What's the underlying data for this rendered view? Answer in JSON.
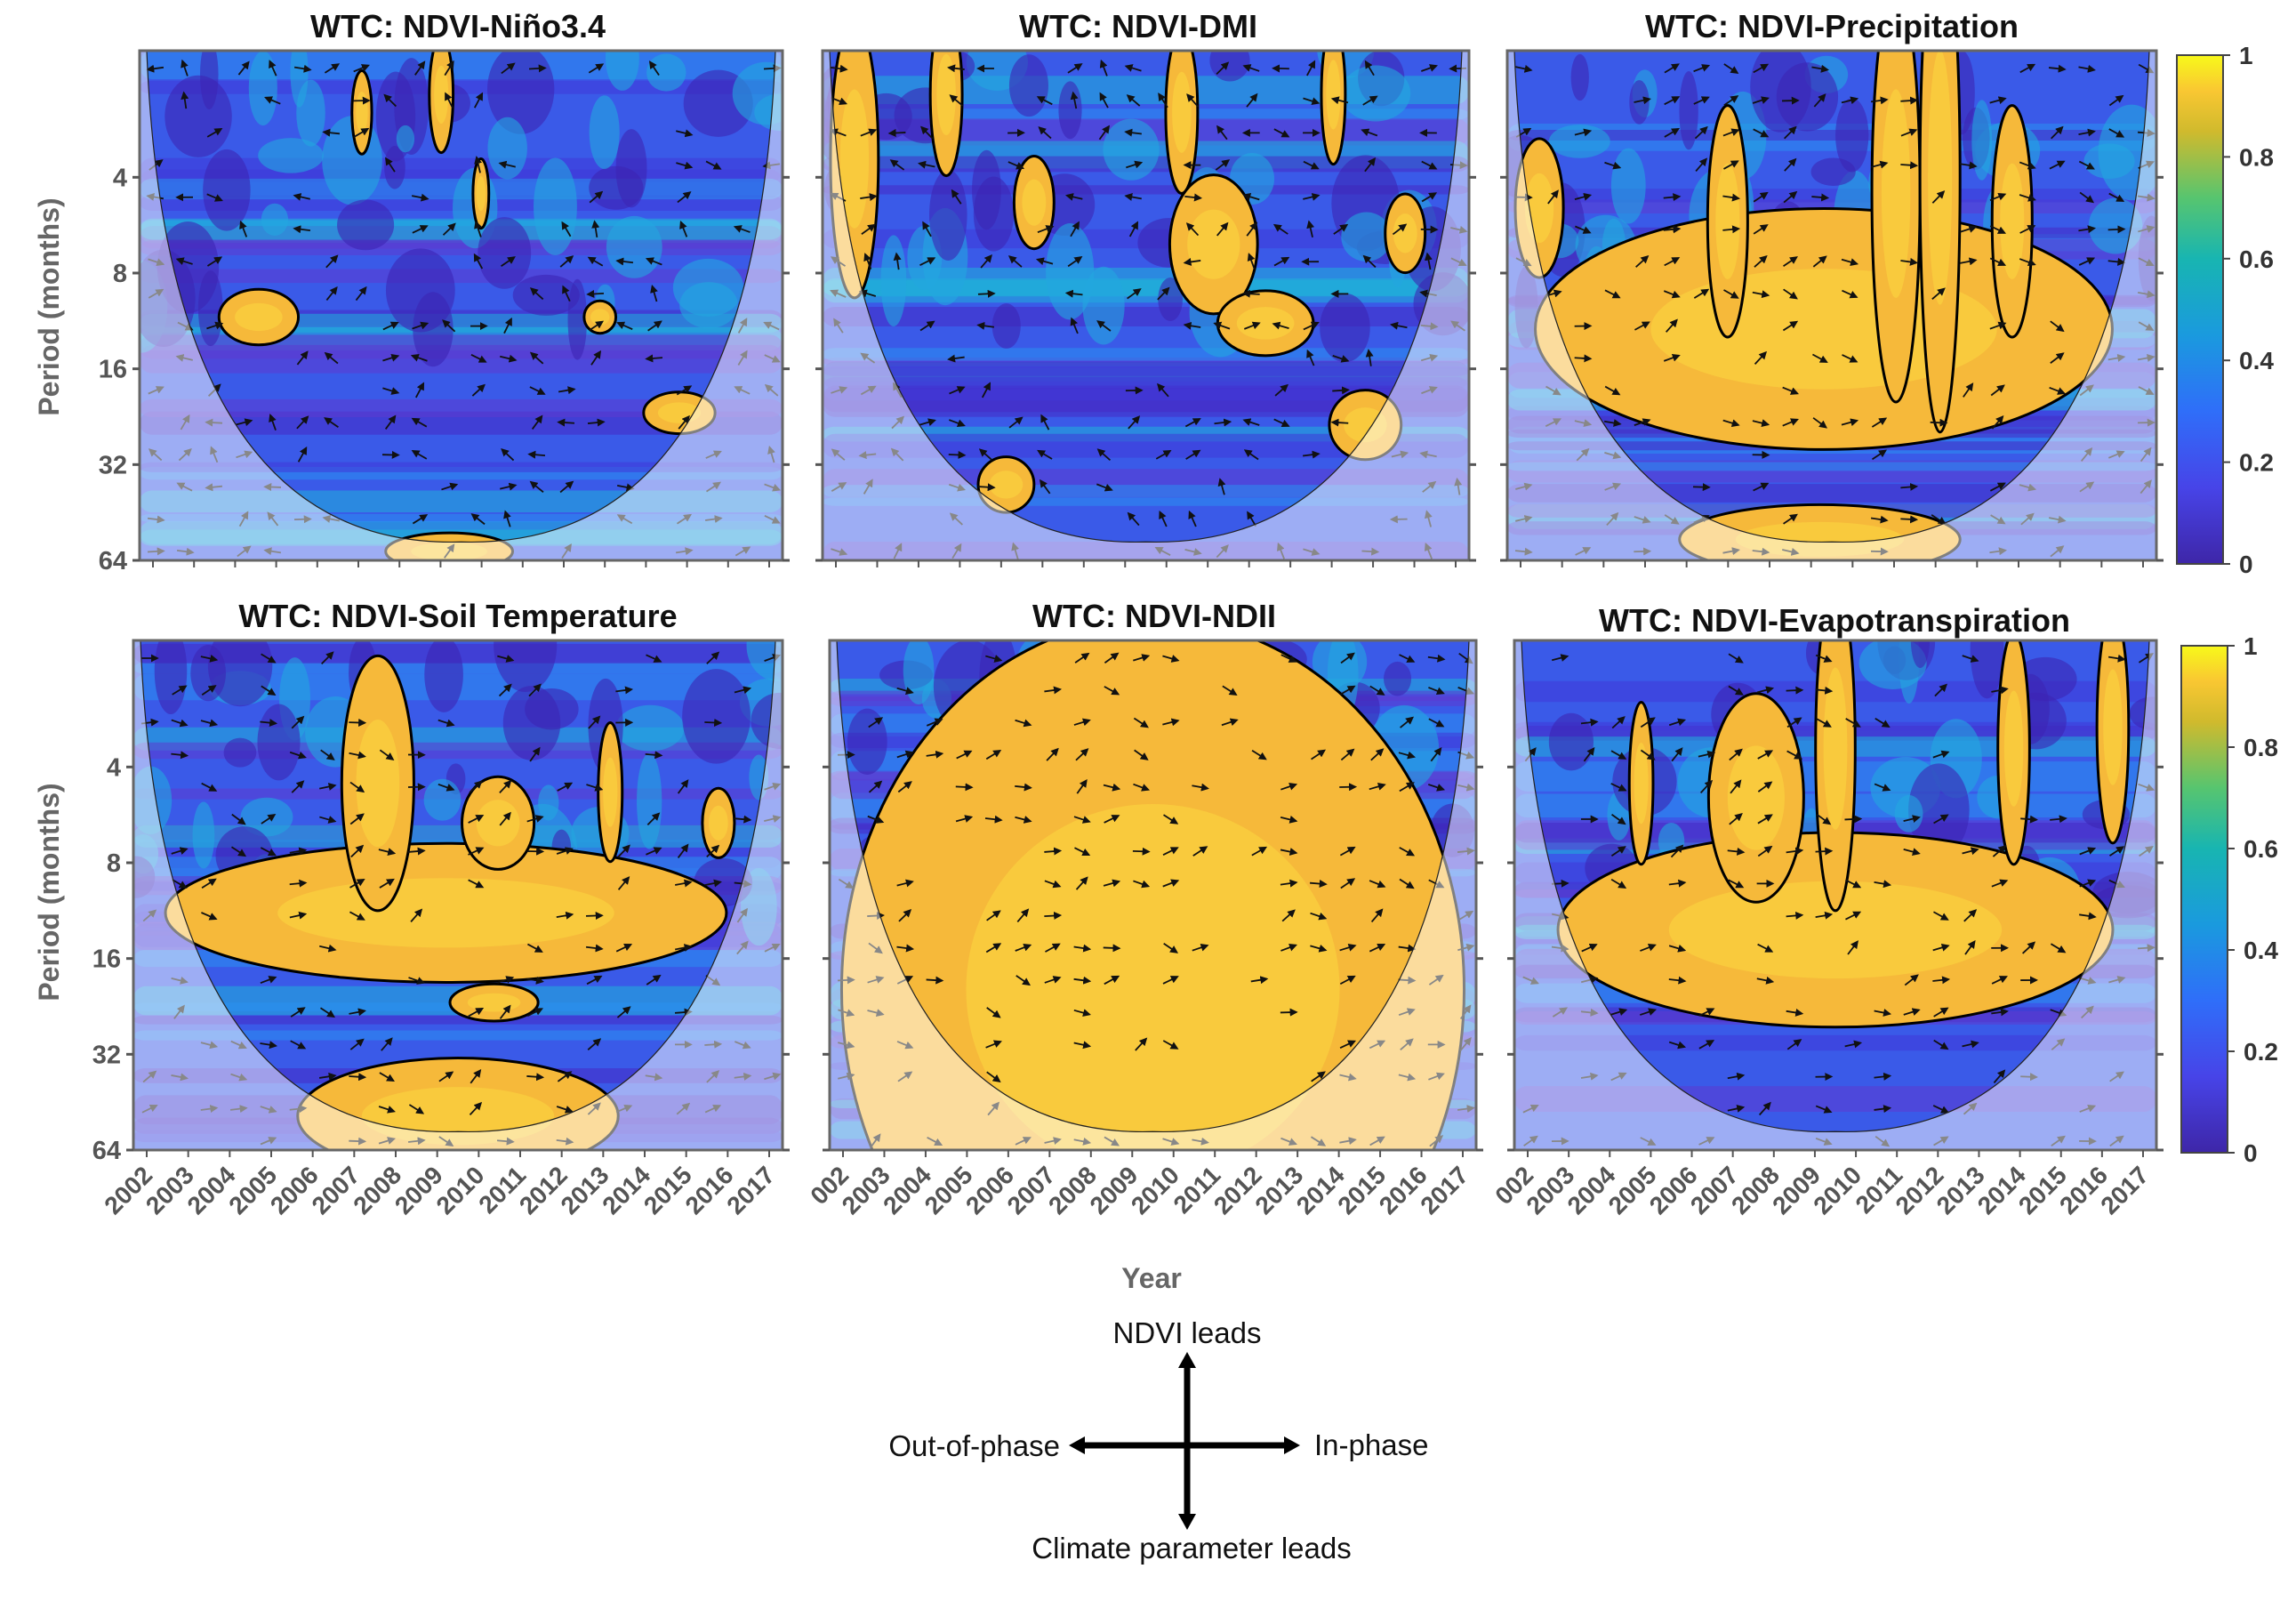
{
  "chart_data": {
    "type": "heatmap",
    "description_kind": "wavelet coherence panels",
    "panels": [
      {
        "title": "WTC: NDVI-Niño3.4",
        "significant_regions": [
          {
            "year": 2004.7,
            "period": 11,
            "w": 1.0,
            "h": 0.12
          },
          {
            "year": 2013.3,
            "period": 11,
            "w": 0.4,
            "h": 0.07
          },
          {
            "year": 2015.3,
            "period": 22,
            "w": 0.9,
            "h": 0.09
          },
          {
            "year": 2007.3,
            "period": 2.5,
            "w": 0.25,
            "h": 0.18
          },
          {
            "year": 2009.3,
            "period": 2.2,
            "w": 0.3,
            "h": 0.25
          },
          {
            "year": 2010.3,
            "period": 4.5,
            "w": 0.2,
            "h": 0.15
          },
          {
            "year": 2009.5,
            "period": 60,
            "w": 1.6,
            "h": 0.08
          }
        ]
      },
      {
        "title": "WTC: NDVI-DMI",
        "significant_regions": [
          {
            "year": 2002.5,
            "period": 3.5,
            "w": 0.6,
            "h": 0.6
          },
          {
            "year": 2004.8,
            "period": 2.2,
            "w": 0.4,
            "h": 0.35
          },
          {
            "year": 2007.0,
            "period": 4.8,
            "w": 0.5,
            "h": 0.2
          },
          {
            "year": 2010.7,
            "period": 2.5,
            "w": 0.4,
            "h": 0.35
          },
          {
            "year": 2011.5,
            "period": 6.5,
            "w": 1.1,
            "h": 0.3
          },
          {
            "year": 2012.8,
            "period": 11.5,
            "w": 1.2,
            "h": 0.14
          },
          {
            "year": 2014.5,
            "period": 2.2,
            "w": 0.3,
            "h": 0.3
          },
          {
            "year": 2016.3,
            "period": 6,
            "w": 0.5,
            "h": 0.17
          },
          {
            "year": 2015.3,
            "period": 24,
            "w": 0.9,
            "h": 0.15
          },
          {
            "year": 2006.3,
            "period": 37,
            "w": 0.7,
            "h": 0.12
          }
        ]
      },
      {
        "title": "WTC: NDVI-Precipitation",
        "significant_regions": [
          {
            "year": 2002.5,
            "period": 5,
            "w": 0.6,
            "h": 0.3
          },
          {
            "year": 2009.6,
            "period": 12,
            "w": 7.2,
            "h": 0.52
          },
          {
            "year": 2007.2,
            "period": 5.5,
            "w": 0.5,
            "h": 0.5
          },
          {
            "year": 2011.4,
            "period": 4.5,
            "w": 0.6,
            "h": 0.9
          },
          {
            "year": 2012.5,
            "period": 4.0,
            "w": 0.5,
            "h": 1.1
          },
          {
            "year": 2014.3,
            "period": 5.5,
            "w": 0.5,
            "h": 0.5
          },
          {
            "year": 2009.5,
            "period": 55,
            "w": 3.5,
            "h": 0.15
          }
        ]
      },
      {
        "title": "WTC: NDVI-Soil Temperature",
        "significant_regions": [
          {
            "year": 2009.5,
            "period": 11.5,
            "w": 7.0,
            "h": 0.3
          },
          {
            "year": 2007.8,
            "period": 4.5,
            "w": 0.9,
            "h": 0.55
          },
          {
            "year": 2010.8,
            "period": 6,
            "w": 0.9,
            "h": 0.2
          },
          {
            "year": 2013.6,
            "period": 4.8,
            "w": 0.3,
            "h": 0.3
          },
          {
            "year": 2016.3,
            "period": 6,
            "w": 0.4,
            "h": 0.15
          },
          {
            "year": 2010.7,
            "period": 22,
            "w": 1.1,
            "h": 0.08
          },
          {
            "year": 2009.8,
            "period": 50,
            "w": 4.0,
            "h": 0.25
          }
        ]
      },
      {
        "title": "WTC: NDVI-NDII",
        "significant_regions": [
          {
            "year": 2009.8,
            "period": 20,
            "w": 7.8,
            "h": 1.6
          }
        ]
      },
      {
        "title": "WTC: NDVI-Evapotranspiration",
        "significant_regions": [
          {
            "year": 2009.8,
            "period": 13,
            "w": 7.0,
            "h": 0.42
          },
          {
            "year": 2007.8,
            "period": 5,
            "w": 1.2,
            "h": 0.45
          },
          {
            "year": 2009.8,
            "period": 3.5,
            "w": 0.5,
            "h": 0.7
          },
          {
            "year": 2004.9,
            "period": 4.5,
            "w": 0.3,
            "h": 0.35
          },
          {
            "year": 2014.3,
            "period": 3.5,
            "w": 0.4,
            "h": 0.5
          },
          {
            "year": 2016.8,
            "period": 3,
            "w": 0.4,
            "h": 0.5
          }
        ]
      }
    ],
    "xlabel": "Year",
    "x_ticks": [
      "2002",
      "2003",
      "2004",
      "2005",
      "2006",
      "2007",
      "2008",
      "2009",
      "2010",
      "2011",
      "2012",
      "2013",
      "2014",
      "2015",
      "2016",
      "2017"
    ],
    "x_ticks_cut": [
      "002",
      "2003",
      "2004",
      "2005",
      "2006",
      "2007",
      "2008",
      "2009",
      "2010",
      "2011",
      "2012",
      "2013",
      "2014",
      "2015",
      "2016",
      "2017"
    ],
    "x_ticks_cut2": [
      "002",
      "2003",
      "2004",
      "2005",
      "2006",
      "2007",
      "2008",
      "2009",
      "2010",
      "2011",
      "2012",
      "2013",
      "2014",
      "2015",
      "2016",
      "2017"
    ],
    "ylabel": "Period (months)",
    "y_ticks": [
      "4",
      "8",
      "16",
      "32",
      "64"
    ],
    "y_scale": "log2",
    "ylim": [
      1.6,
      64
    ],
    "xlim": [
      2001.7,
      2017.9
    ],
    "colorbar": {
      "ticks": [
        "1",
        "0.8",
        "0.6",
        "0.4",
        "0.2",
        "0"
      ],
      "range": [
        0,
        1
      ],
      "colormap": "parula"
    },
    "arrow_legend": {
      "up": "NDVI leads",
      "down": "Climate parameter leads",
      "left": "Out-of-phase",
      "right": "In-phase"
    }
  }
}
